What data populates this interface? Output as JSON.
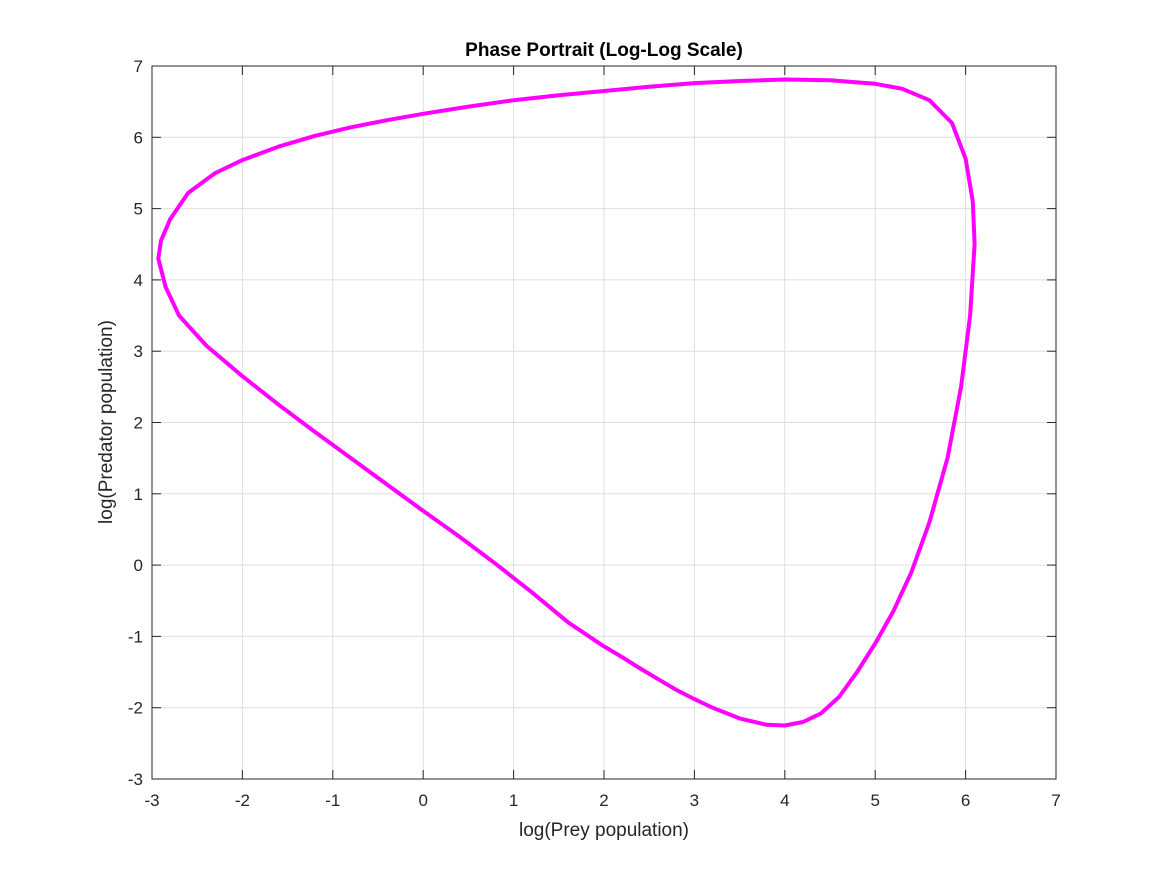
{
  "chart_data": {
    "type": "line",
    "title": "Phase Portrait (Log-Log Scale)",
    "xlabel": "log(Prey population)",
    "ylabel": "log(Predator population)",
    "xlim": [
      -3,
      7
    ],
    "ylim": [
      -3,
      7
    ],
    "xticks": [
      -3,
      -2,
      -1,
      0,
      1,
      2,
      3,
      4,
      5,
      6,
      7
    ],
    "yticks": [
      -3,
      -2,
      -1,
      0,
      1,
      2,
      3,
      4,
      5,
      6,
      7
    ],
    "grid": true,
    "line_color": "#ff00ff",
    "series": [
      {
        "x": [
          1.6,
          1.2,
          0.8,
          0.4,
          0.0,
          -0.4,
          -0.8,
          -1.2,
          -1.6,
          -2.0,
          -2.4,
          -2.7,
          -2.85,
          -2.93,
          -2.9,
          -2.8,
          -2.6,
          -2.3,
          -2.0,
          -1.6,
          -1.2,
          -0.8,
          -0.4,
          0.0,
          0.5,
          1.0,
          1.5,
          2.0,
          2.5,
          3.0,
          3.5,
          4.0,
          4.5,
          5.0,
          5.3,
          5.6,
          5.85,
          6.0,
          6.08,
          6.1,
          6.05,
          5.95,
          5.8,
          5.6,
          5.4,
          5.2,
          5.0,
          4.8,
          4.6,
          4.4,
          4.2,
          4.0,
          3.8,
          3.5,
          3.2,
          3.0,
          2.8,
          2.6,
          2.4,
          2.2,
          2.0,
          1.8,
          1.6
        ],
        "y": [
          -0.8,
          -0.38,
          0.02,
          0.4,
          0.76,
          1.13,
          1.5,
          1.87,
          2.25,
          2.65,
          3.08,
          3.5,
          3.9,
          4.3,
          4.55,
          4.85,
          5.22,
          5.5,
          5.68,
          5.87,
          6.02,
          6.14,
          6.24,
          6.33,
          6.43,
          6.52,
          6.59,
          6.65,
          6.71,
          6.76,
          6.79,
          6.81,
          6.8,
          6.75,
          6.68,
          6.52,
          6.2,
          5.7,
          5.1,
          4.5,
          3.5,
          2.5,
          1.5,
          0.6,
          -0.1,
          -0.65,
          -1.1,
          -1.5,
          -1.85,
          -2.08,
          -2.2,
          -2.25,
          -2.24,
          -2.15,
          -2.0,
          -1.88,
          -1.75,
          -1.6,
          -1.45,
          -1.29,
          -1.14,
          -0.97,
          -0.8
        ]
      }
    ]
  }
}
